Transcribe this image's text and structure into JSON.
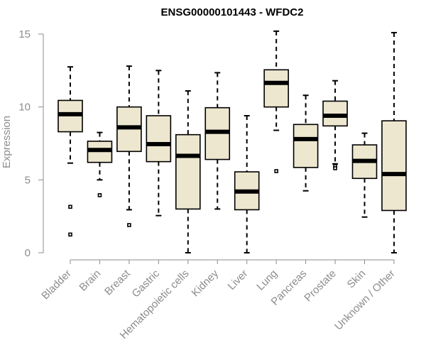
{
  "chart_data": {
    "type": "box",
    "title": "ENSG00000101443 - WFDC2",
    "ylabel": "Expression",
    "xlabel": "",
    "ylim": [
      0,
      15
    ],
    "yticks": [
      0,
      5,
      10,
      15
    ],
    "box_color": "#ede7d0",
    "axis_color": "#8c8c8c",
    "grid": false,
    "categories": [
      "Bladder",
      "Brain",
      "Breast",
      "Gastric",
      "Hematopoietic cells",
      "Kidney",
      "Liver",
      "Lung",
      "Pancreas",
      "Prostate",
      "Skin",
      "Unknown / Other"
    ],
    "boxes": [
      {
        "category": "Bladder",
        "min": 6.15,
        "q1": 8.3,
        "median": 9.5,
        "q3": 10.45,
        "max": 12.75,
        "outliers": [
          3.15,
          1.25
        ]
      },
      {
        "category": "Brain",
        "min": 5.0,
        "q1": 6.2,
        "median": 7.05,
        "q3": 7.65,
        "max": 8.25,
        "outliers": [
          3.95
        ]
      },
      {
        "category": "Breast",
        "min": 2.95,
        "q1": 6.95,
        "median": 8.6,
        "q3": 10.0,
        "max": 12.8,
        "outliers": [
          1.9
        ]
      },
      {
        "category": "Gastric",
        "min": 2.55,
        "q1": 6.25,
        "median": 7.45,
        "q3": 9.4,
        "max": 12.5,
        "outliers": []
      },
      {
        "category": "Hematopoietic cells",
        "min": 0.0,
        "q1": 3.0,
        "median": 6.65,
        "q3": 8.1,
        "max": 11.1,
        "outliers": []
      },
      {
        "category": "Kidney",
        "min": 3.0,
        "q1": 6.4,
        "median": 8.3,
        "q3": 9.95,
        "max": 12.35,
        "outliers": []
      },
      {
        "category": "Liver",
        "min": 0.0,
        "q1": 2.95,
        "median": 4.2,
        "q3": 5.55,
        "max": 9.4,
        "outliers": []
      },
      {
        "category": "Lung",
        "min": 8.4,
        "q1": 10.0,
        "median": 11.65,
        "q3": 12.55,
        "max": 15.2,
        "outliers": [
          5.6
        ]
      },
      {
        "category": "Pancreas",
        "min": 4.25,
        "q1": 5.85,
        "median": 7.8,
        "q3": 8.8,
        "max": 10.8,
        "outliers": []
      },
      {
        "category": "Prostate",
        "min": 6.1,
        "q1": 8.7,
        "median": 9.4,
        "q3": 10.4,
        "max": 11.8,
        "outliers": [
          5.95,
          5.8
        ]
      },
      {
        "category": "Skin",
        "min": 2.45,
        "q1": 5.1,
        "median": 6.3,
        "q3": 7.4,
        "max": 8.2,
        "outliers": []
      },
      {
        "category": "Unknown / Other",
        "min": 0.0,
        "q1": 2.9,
        "median": 5.4,
        "q3": 9.05,
        "max": 15.1,
        "outliers": []
      }
    ]
  }
}
